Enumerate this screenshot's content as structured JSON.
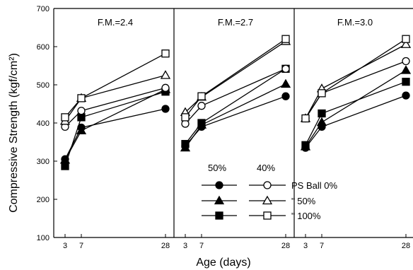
{
  "chart_data": {
    "type": "line",
    "ylabel": "Compressive Strength (kgf/cm²)",
    "xlabel": "Age (days)",
    "ylim": [
      100,
      700
    ],
    "y_ticks": [
      100,
      200,
      300,
      400,
      500,
      600,
      700
    ],
    "x_ticks": [
      3,
      7,
      28
    ],
    "grid": false,
    "legend": {
      "placement": "bottom-right",
      "col_headers": [
        "50%",
        "40%"
      ],
      "row_labels": [
        "PS Ball 0%",
        "\"    50%",
        "\"    100%"
      ]
    },
    "panels": [
      {
        "title": "F.M.=2.4",
        "series": [
          {
            "group": "50%",
            "ps_ball": "0%",
            "marker": "circle",
            "filled": true,
            "x": [
              3,
              7,
              28
            ],
            "y": [
              305,
              388,
              437
            ]
          },
          {
            "group": "50%",
            "ps_ball": "50%",
            "marker": "triangle",
            "filled": true,
            "x": [
              3,
              7,
              28
            ],
            "y": [
              303,
              380,
              488
            ]
          },
          {
            "group": "50%",
            "ps_ball": "100%",
            "marker": "square",
            "filled": true,
            "x": [
              3,
              7,
              28
            ],
            "y": [
              287,
              415,
              482
            ]
          },
          {
            "group": "40%",
            "ps_ball": "0%",
            "marker": "circle",
            "filled": false,
            "x": [
              3,
              7,
              28
            ],
            "y": [
              390,
              432,
              492
            ]
          },
          {
            "group": "40%",
            "ps_ball": "50%",
            "marker": "triangle",
            "filled": false,
            "x": [
              3,
              7,
              28
            ],
            "y": [
              405,
              465,
              525
            ]
          },
          {
            "group": "40%",
            "ps_ball": "100%",
            "marker": "square",
            "filled": false,
            "x": [
              3,
              7,
              28
            ],
            "y": [
              415,
              465,
              582
            ]
          }
        ]
      },
      {
        "title": "F.M.=2.7",
        "series": [
          {
            "group": "50%",
            "ps_ball": "0%",
            "marker": "circle",
            "filled": true,
            "x": [
              3,
              7,
              28
            ],
            "y": [
              340,
              390,
              470
            ]
          },
          {
            "group": "50%",
            "ps_ball": "50%",
            "marker": "triangle",
            "filled": true,
            "x": [
              3,
              7,
              28
            ],
            "y": [
              335,
              395,
              502
            ]
          },
          {
            "group": "50%",
            "ps_ball": "100%",
            "marker": "square",
            "filled": true,
            "x": [
              3,
              7,
              28
            ],
            "y": [
              345,
              400,
              542
            ]
          },
          {
            "group": "40%",
            "ps_ball": "0%",
            "marker": "circle",
            "filled": false,
            "x": [
              3,
              7,
              28
            ],
            "y": [
              398,
              445,
              542
            ]
          },
          {
            "group": "40%",
            "ps_ball": "50%",
            "marker": "triangle",
            "filled": false,
            "x": [
              3,
              7,
              28
            ],
            "y": [
              428,
              468,
              614
            ]
          },
          {
            "group": "40%",
            "ps_ball": "100%",
            "marker": "square",
            "filled": false,
            "x": [
              3,
              7,
              28
            ],
            "y": [
              415,
              470,
              620
            ]
          }
        ]
      },
      {
        "title": "F.M.=3.0",
        "series": [
          {
            "group": "50%",
            "ps_ball": "0%",
            "marker": "circle",
            "filled": true,
            "x": [
              3,
              7,
              28
            ],
            "y": [
              335,
              390,
              472
            ]
          },
          {
            "group": "50%",
            "ps_ball": "50%",
            "marker": "triangle",
            "filled": true,
            "x": [
              3,
              7,
              28
            ],
            "y": [
              338,
              402,
              538
            ]
          },
          {
            "group": "50%",
            "ps_ball": "100%",
            "marker": "square",
            "filled": true,
            "x": [
              3,
              7,
              28
            ],
            "y": [
              342,
              425,
              508
            ]
          },
          {
            "group": "40%",
            "ps_ball": "0%",
            "marker": "circle",
            "filled": false,
            "x": [
              3,
              7,
              28
            ],
            "y": [
              412,
              478,
              562
            ]
          },
          {
            "group": "40%",
            "ps_ball": "50%",
            "marker": "triangle",
            "filled": false,
            "x": [
              3,
              7,
              28
            ],
            "y": [
              412,
              490,
              606
            ]
          },
          {
            "group": "40%",
            "ps_ball": "100%",
            "marker": "square",
            "filled": false,
            "x": [
              3,
              7,
              28
            ],
            "y": [
              412,
              478,
              620
            ]
          }
        ]
      }
    ]
  }
}
